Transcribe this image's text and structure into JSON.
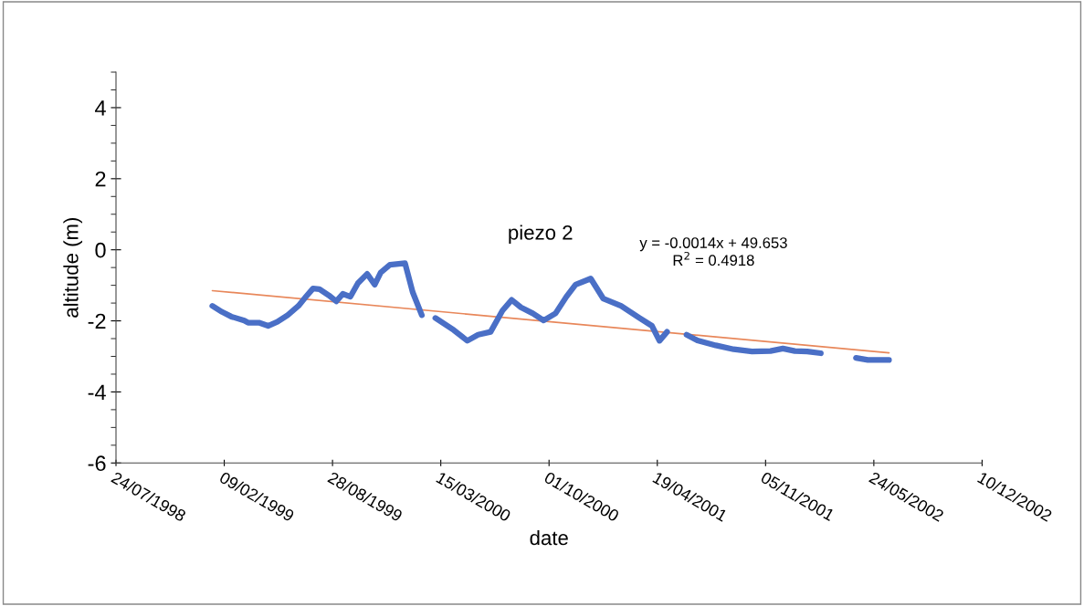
{
  "chart_data": {
    "type": "line",
    "title": "piezo 2",
    "xlabel": "date",
    "ylabel": "altitude (m)",
    "xlim": [
      "1998-07-24",
      "2002-12-10"
    ],
    "xticks": [
      {
        "value": "1998-07-24",
        "label": "24/07/1998"
      },
      {
        "value": "1999-02-09",
        "label": "09/02/1999"
      },
      {
        "value": "1999-08-28",
        "label": "28/08/1999"
      },
      {
        "value": "2000-03-15",
        "label": "15/03/2000"
      },
      {
        "value": "2000-10-01",
        "label": "01/10/2000"
      },
      {
        "value": "2001-04-19",
        "label": "19/04/2001"
      },
      {
        "value": "2001-11-05",
        "label": "05/11/2001"
      },
      {
        "value": "2002-05-24",
        "label": "24/05/2002"
      },
      {
        "value": "2002-12-10",
        "label": "10/12/2002"
      }
    ],
    "ylim": [
      -6,
      5
    ],
    "yticks": [
      -6,
      -4,
      -2,
      0,
      2,
      4
    ],
    "marker": "none",
    "annotations": [
      "y = -0.0014x + 49.653",
      "R$^{2}$ = 0.4918"
    ],
    "series": [
      {
        "color": "#4a6fc6",
        "x": [
          "1999-01-18",
          "1999-02-05",
          "1999-02-22",
          "1999-03-18",
          "1999-03-25",
          "1999-04-14",
          "1999-05-01",
          "1999-05-18",
          "1999-06-06",
          "1999-06-26",
          "1999-07-10",
          "1999-07-23",
          "1999-08-04",
          "1999-08-21",
          "1999-09-04",
          "1999-09-16",
          "1999-09-30",
          "1999-10-14",
          "1999-10-31",
          "1999-11-14",
          "1999-11-25",
          "1999-12-12",
          "2000-01-09",
          "2000-01-23",
          "2000-02-09",
          "2000-02-22",
          "2000-03-05",
          "2000-04-08",
          "2000-05-03",
          "2000-05-23",
          "2000-06-15",
          "2000-07-07",
          "2000-07-24",
          "2000-08-10",
          "2000-09-01",
          "2000-09-21",
          "2000-10-13",
          "2000-11-02",
          "2000-11-19",
          "2000-12-17",
          "2001-01-09",
          "2001-02-11",
          "2001-03-17",
          "2001-04-09",
          "2001-04-23",
          "2001-05-07",
          "2001-05-25",
          "2001-06-12",
          "2001-07-02",
          "2001-08-05",
          "2001-09-07",
          "2001-10-11",
          "2001-11-14",
          "2001-12-07",
          "2001-12-29",
          "2002-01-21",
          "2002-02-15",
          "2002-03-20",
          "2002-04-21",
          "2002-05-13",
          "2002-06-21"
        ],
        "values": [
          -1.58,
          -1.75,
          -1.88,
          -1.99,
          -2.05,
          -2.05,
          -2.14,
          -2.03,
          -1.84,
          -1.58,
          -1.32,
          -1.09,
          -1.11,
          -1.28,
          -1.45,
          -1.24,
          -1.32,
          -0.94,
          -0.68,
          -0.98,
          -0.64,
          -0.42,
          -0.38,
          -1.19,
          -1.84,
          null,
          -1.92,
          -2.26,
          -2.56,
          -2.39,
          -2.31,
          -1.71,
          -1.41,
          -1.62,
          -1.79,
          -1.99,
          -1.79,
          -1.32,
          -0.98,
          -0.81,
          -1.37,
          -1.58,
          -1.92,
          -2.14,
          -2.56,
          -2.31,
          null,
          -2.39,
          -2.55,
          -2.69,
          -2.8,
          -2.86,
          -2.85,
          -2.78,
          -2.85,
          -2.86,
          -2.91,
          null,
          -3.04,
          -3.1,
          -3.1
        ]
      },
      {
        "type": "line",
        "color": "#e8875a",
        "x": [
          "1999-01-18",
          "2002-06-21"
        ],
        "values": [
          -1.15,
          -2.9
        ]
      }
    ]
  }
}
